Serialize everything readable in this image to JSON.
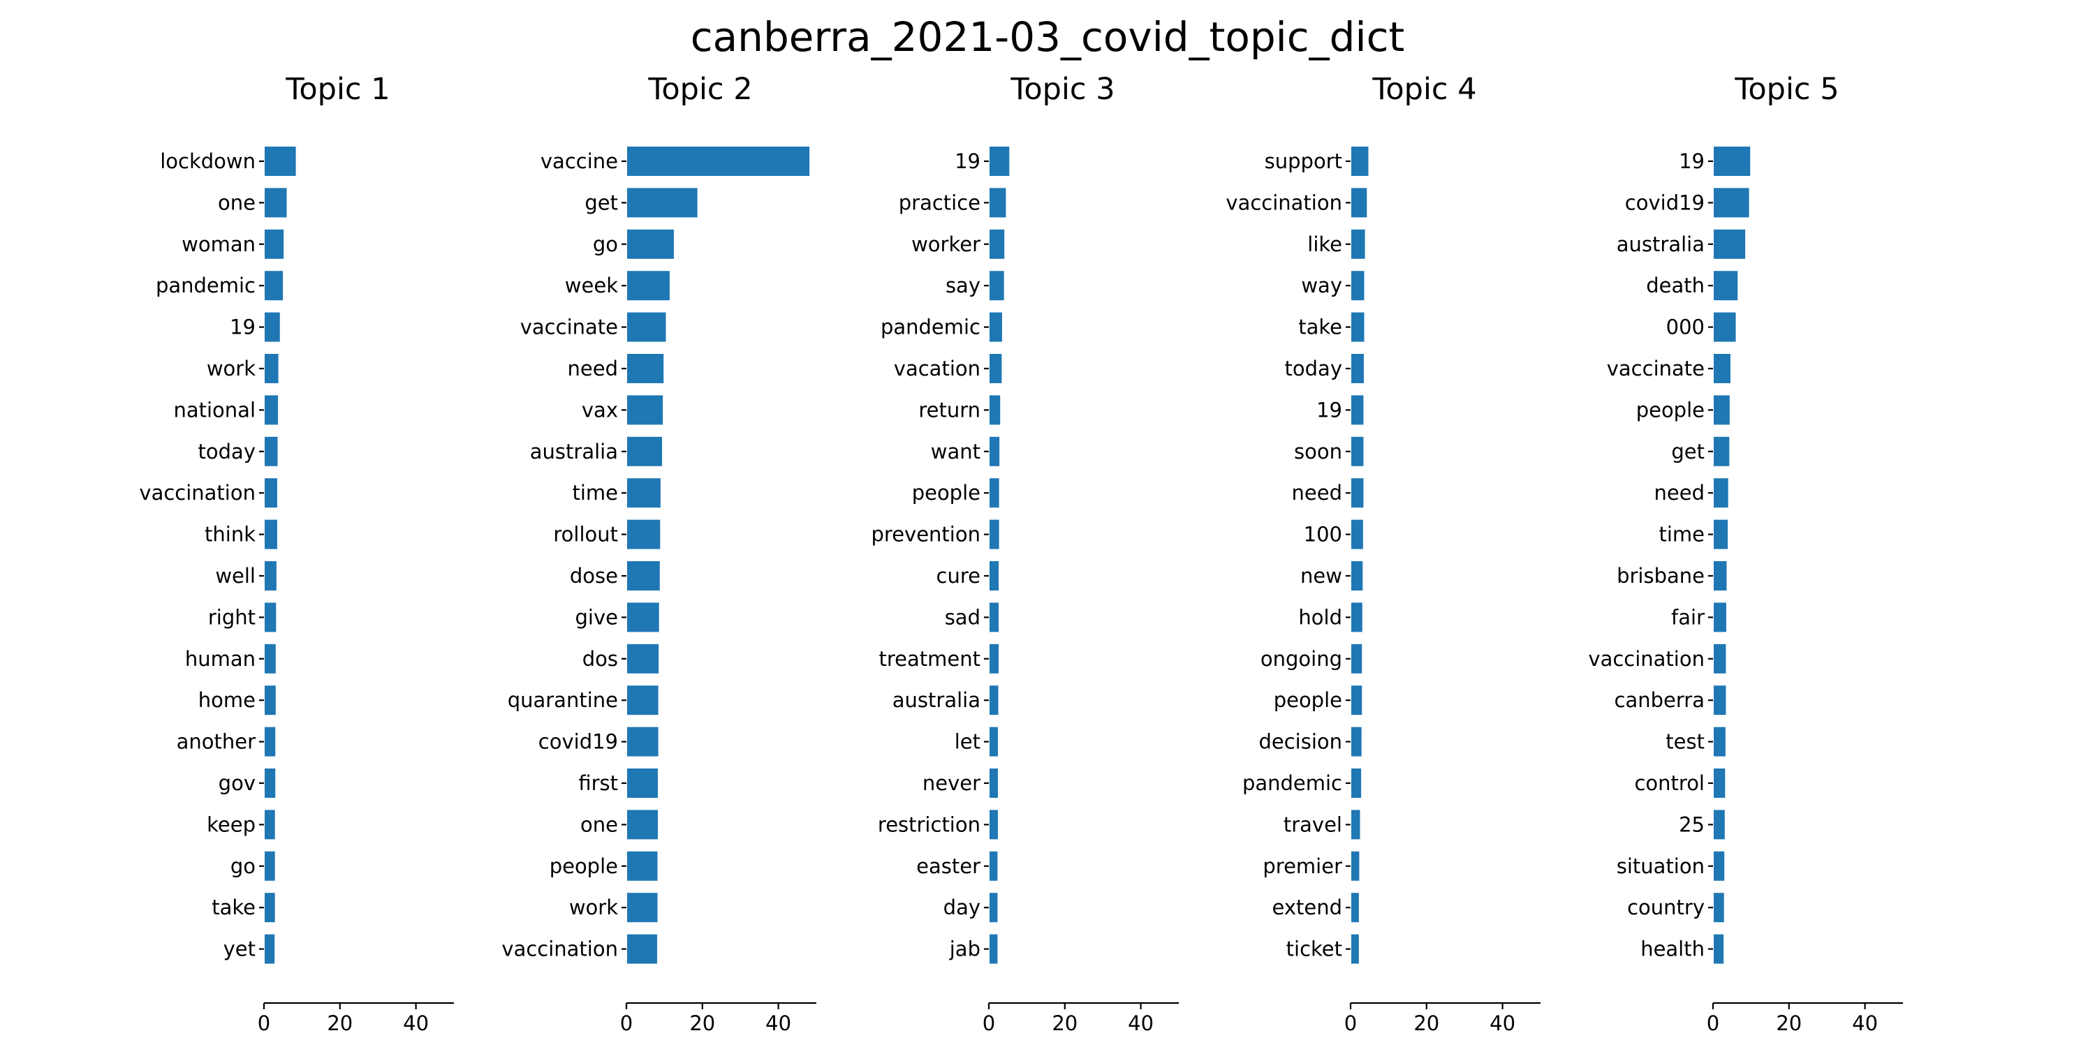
{
  "title": "canberra_2021-03_covid_topic_dict",
  "chart_data": [
    {
      "type": "bar",
      "orientation": "horizontal",
      "title": "Topic 1",
      "categories": [
        "lockdown",
        "one",
        "woman",
        "pandemic",
        "19",
        "work",
        "national",
        "today",
        "vaccination",
        "think",
        "well",
        "right",
        "human",
        "home",
        "another",
        "gov",
        "keep",
        "go",
        "take",
        "yet"
      ],
      "values": [
        8.2,
        5.8,
        5.0,
        4.8,
        4.0,
        3.6,
        3.5,
        3.4,
        3.3,
        3.3,
        3.1,
        3.0,
        2.9,
        2.9,
        2.8,
        2.8,
        2.7,
        2.7,
        2.7,
        2.6
      ],
      "xlim": [
        0,
        50
      ],
      "xticks": [
        0,
        20,
        40
      ],
      "grid": false
    },
    {
      "type": "bar",
      "orientation": "horizontal",
      "title": "Topic 2",
      "categories": [
        "vaccine",
        "get",
        "go",
        "week",
        "vaccinate",
        "need",
        "vax",
        "australia",
        "time",
        "rollout",
        "dose",
        "give",
        "dos",
        "quarantine",
        "covid19",
        "first",
        "one",
        "people",
        "work",
        "vaccination"
      ],
      "values": [
        48.0,
        18.5,
        12.3,
        11.2,
        10.2,
        9.6,
        9.4,
        9.2,
        8.8,
        8.7,
        8.6,
        8.4,
        8.3,
        8.2,
        8.2,
        8.1,
        8.1,
        8.0,
        8.0,
        7.9
      ],
      "xlim": [
        0,
        50
      ],
      "xticks": [
        0,
        20,
        40
      ],
      "grid": false
    },
    {
      "type": "bar",
      "orientation": "horizontal",
      "title": "Topic 3",
      "categories": [
        "19",
        "practice",
        "worker",
        "say",
        "pandemic",
        "vacation",
        "return",
        "want",
        "people",
        "prevention",
        "cure",
        "sad",
        "treatment",
        "australia",
        "let",
        "never",
        "restriction",
        "easter",
        "day",
        "jab"
      ],
      "values": [
        5.2,
        4.3,
        3.9,
        3.8,
        3.3,
        3.2,
        2.8,
        2.6,
        2.5,
        2.5,
        2.4,
        2.4,
        2.4,
        2.3,
        2.2,
        2.2,
        2.2,
        2.1,
        2.1,
        2.1
      ],
      "xlim": [
        0,
        50
      ],
      "xticks": [
        0,
        20,
        40
      ],
      "grid": false
    },
    {
      "type": "bar",
      "orientation": "horizontal",
      "title": "Topic 4",
      "categories": [
        "support",
        "vaccination",
        "like",
        "way",
        "take",
        "today",
        "19",
        "soon",
        "need",
        "100",
        "new",
        "hold",
        "ongoing",
        "people",
        "decision",
        "pandemic",
        "travel",
        "premier",
        "extend",
        "ticket"
      ],
      "values": [
        4.5,
        4.1,
        3.6,
        3.4,
        3.4,
        3.3,
        3.2,
        3.2,
        3.2,
        3.1,
        3.0,
        2.9,
        2.8,
        2.8,
        2.7,
        2.6,
        2.3,
        2.1,
        2.0,
        2.0
      ],
      "xlim": [
        0,
        50
      ],
      "xticks": [
        0,
        20,
        40
      ],
      "grid": false
    },
    {
      "type": "bar",
      "orientation": "horizontal",
      "title": "Topic 5",
      "categories": [
        "19",
        "covid19",
        "australia",
        "death",
        "000",
        "vaccinate",
        "people",
        "get",
        "need",
        "time",
        "brisbane",
        "fair",
        "vaccination",
        "canberra",
        "test",
        "control",
        "25",
        "situation",
        "country",
        "health"
      ],
      "values": [
        9.6,
        9.3,
        8.3,
        6.3,
        5.8,
        4.4,
        4.2,
        4.1,
        3.8,
        3.7,
        3.4,
        3.3,
        3.2,
        3.2,
        3.1,
        3.0,
        2.9,
        2.8,
        2.7,
        2.6
      ],
      "xlim": [
        0,
        50
      ],
      "xticks": [
        0,
        20,
        40
      ],
      "grid": false
    }
  ]
}
